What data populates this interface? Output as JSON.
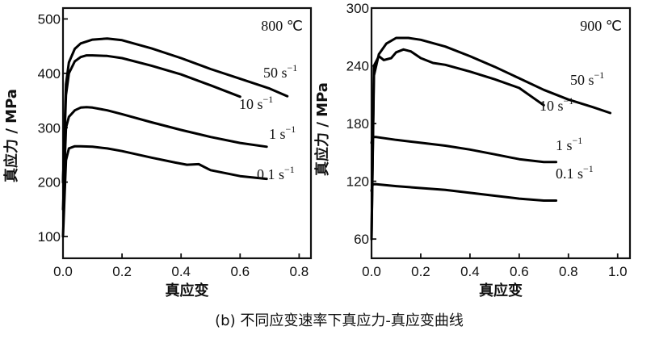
{
  "caption": "(b) 不同应变速率下真应力-真应变曲线",
  "chart_data": [
    {
      "type": "line",
      "title": "800 ℃",
      "xlabel": "真应变",
      "ylabel": "真应力 / MPa",
      "xlim": [
        0,
        0.84
      ],
      "ylim": [
        60,
        520
      ],
      "xticks": [
        0.0,
        0.2,
        0.4,
        0.6,
        0.8
      ],
      "xtick_labels": [
        "0.0",
        "0.2",
        "0.4",
        "0.6",
        "0.8"
      ],
      "yticks": [
        100,
        200,
        300,
        400,
        500
      ],
      "ytick_labels": [
        "100",
        "200",
        "300",
        "400",
        "500"
      ],
      "series": [
        {
          "name": "50 s⁻¹",
          "label_parts": [
            "50 s",
            "−1"
          ],
          "x": [
            0.0,
            0.01,
            0.02,
            0.04,
            0.06,
            0.1,
            0.15,
            0.2,
            0.3,
            0.4,
            0.5,
            0.6,
            0.7,
            0.76
          ],
          "y": [
            200,
            380,
            420,
            445,
            455,
            462,
            464,
            461,
            446,
            428,
            408,
            390,
            372,
            358
          ]
        },
        {
          "name": "10 s⁻¹",
          "label_parts": [
            "10 s",
            "−1"
          ],
          "x": [
            0.0,
            0.01,
            0.02,
            0.04,
            0.06,
            0.08,
            0.1,
            0.15,
            0.2,
            0.3,
            0.4,
            0.5,
            0.6
          ],
          "y": [
            200,
            360,
            400,
            422,
            430,
            433,
            433,
            432,
            428,
            414,
            398,
            378,
            357
          ]
        },
        {
          "name": "1 s⁻¹",
          "label_parts": [
            "1 s",
            "−1"
          ],
          "x": [
            0.0,
            0.01,
            0.02,
            0.04,
            0.06,
            0.08,
            0.1,
            0.15,
            0.2,
            0.3,
            0.4,
            0.5,
            0.6,
            0.69
          ],
          "y": [
            150,
            300,
            320,
            332,
            337,
            338,
            337,
            332,
            325,
            310,
            296,
            283,
            272,
            265
          ]
        },
        {
          "name": "0.1 s⁻¹",
          "label_parts": [
            "0.1 s",
            "−1"
          ],
          "x": [
            0.0,
            0.01,
            0.02,
            0.04,
            0.06,
            0.1,
            0.15,
            0.2,
            0.3,
            0.38,
            0.42,
            0.46,
            0.5,
            0.6,
            0.69
          ],
          "y": [
            100,
            240,
            262,
            266,
            266,
            265,
            262,
            257,
            245,
            236,
            232,
            233,
            222,
            211,
            206
          ]
        }
      ]
    },
    {
      "type": "line",
      "title": "900 ℃",
      "xlabel": "真应变",
      "ylabel": "真应力 / MPa",
      "xlim": [
        0,
        1.05
      ],
      "ylim": [
        40,
        300
      ],
      "xticks": [
        0.0,
        0.2,
        0.4,
        0.6,
        0.8,
        1.0
      ],
      "xtick_labels": [
        "0.0",
        "0.2",
        "0.4",
        "0.6",
        "0.8",
        "1.0"
      ],
      "yticks": [
        60,
        120,
        180,
        240,
        300
      ],
      "ytick_labels": [
        "60",
        "120",
        "180",
        "240",
        "300"
      ],
      "series": [
        {
          "name": "50 s⁻¹",
          "label_parts": [
            "50 s",
            "−1"
          ],
          "x": [
            0.0,
            0.01,
            0.03,
            0.06,
            0.1,
            0.15,
            0.2,
            0.3,
            0.4,
            0.5,
            0.6,
            0.7,
            0.8,
            0.9,
            0.97
          ],
          "y": [
            60,
            230,
            252,
            263,
            269,
            269,
            267,
            260,
            250,
            239,
            227,
            215,
            205,
            197,
            191
          ]
        },
        {
          "name": "10 s⁻¹",
          "label_parts": [
            "10 s",
            "−1"
          ],
          "x": [
            0.0,
            0.01,
            0.03,
            0.05,
            0.08,
            0.1,
            0.13,
            0.16,
            0.2,
            0.25,
            0.3,
            0.4,
            0.5,
            0.6,
            0.65,
            0.7
          ],
          "y": [
            60,
            240,
            250,
            246,
            248,
            254,
            257,
            255,
            248,
            243,
            241,
            234,
            226,
            217,
            208,
            199
          ]
        },
        {
          "name": "1 s⁻¹",
          "label_parts": [
            "1 s",
            "−1"
          ],
          "x": [
            0.0,
            0.005,
            0.02,
            0.1,
            0.2,
            0.3,
            0.4,
            0.5,
            0.6,
            0.7,
            0.75
          ],
          "y": [
            160,
            166,
            166,
            163,
            160,
            157,
            153,
            148,
            143,
            140,
            140
          ]
        },
        {
          "name": "0.1 s⁻¹",
          "label_parts": [
            "0.1 s",
            "−1"
          ],
          "x": [
            0.0,
            0.005,
            0.02,
            0.1,
            0.2,
            0.3,
            0.4,
            0.5,
            0.6,
            0.7,
            0.75
          ],
          "y": [
            110,
            117,
            117,
            115,
            113,
            111,
            108,
            105,
            102,
            100,
            100
          ]
        }
      ]
    }
  ]
}
